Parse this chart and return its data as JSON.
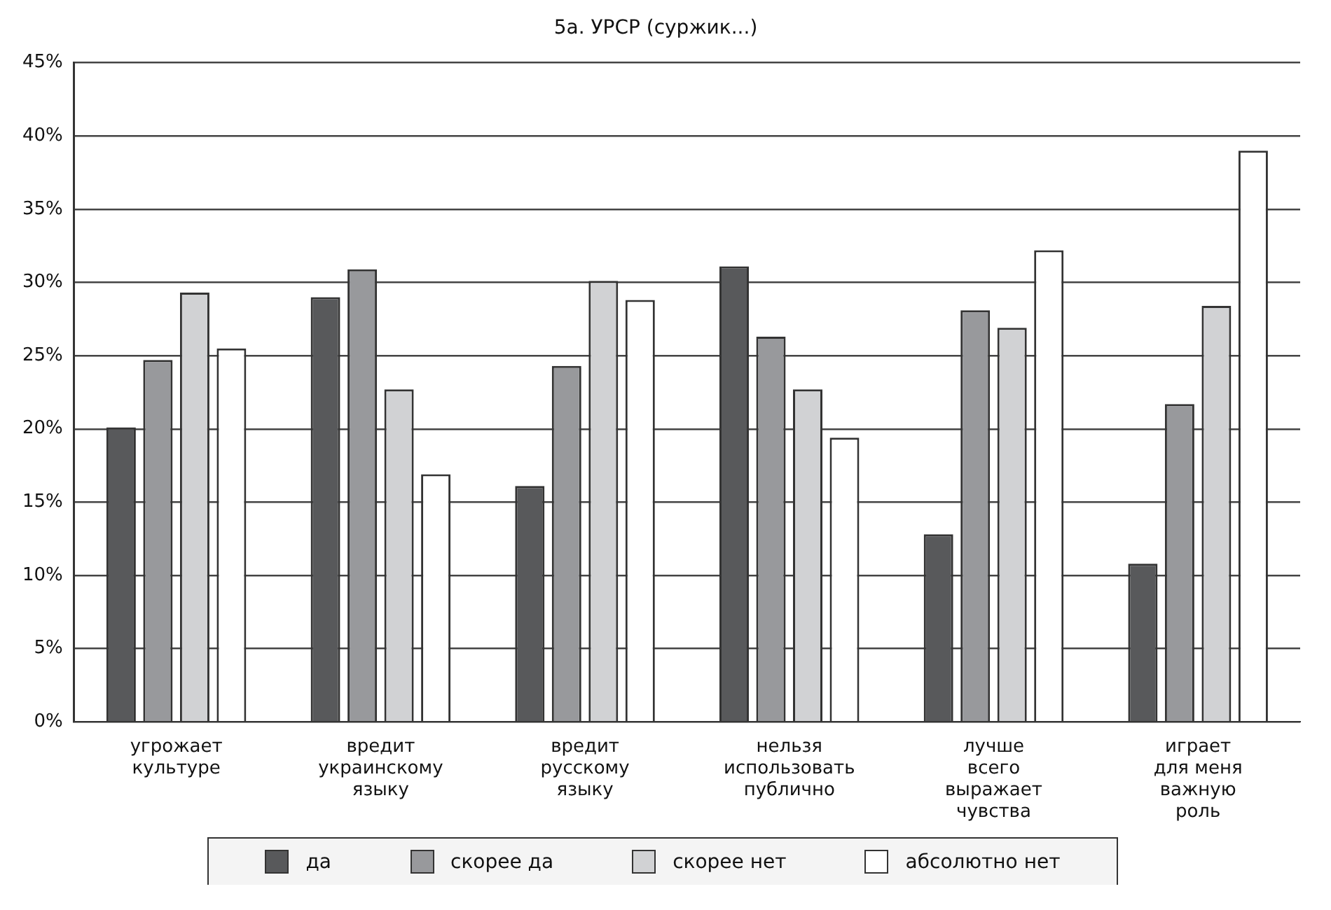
{
  "chart_data": {
    "type": "bar",
    "title": "5а. УРСР (суржик...)",
    "categories": [
      "угрожает\nкультуре",
      "вредит\nукраинскому\nязыку",
      "вредит\nрусскому\nязыку",
      "нельзя\nиспользовать\nпублично",
      "лучше\nвсего\nвыражает\nчувства",
      "играет\nдля меня\nважную\nроль"
    ],
    "series": [
      {
        "name": "да",
        "color": "#58595b",
        "values": [
          20.1,
          29.0,
          16.1,
          31.1,
          12.8,
          10.8
        ]
      },
      {
        "name": "скорее да",
        "color": "#98999c",
        "values": [
          24.7,
          30.9,
          24.3,
          26.3,
          28.1,
          21.7
        ]
      },
      {
        "name": "скорее нет",
        "color": "#d1d2d4",
        "values": [
          29.3,
          22.7,
          30.1,
          22.7,
          26.9,
          28.4
        ]
      },
      {
        "name": "абсолютно нет",
        "color": "#ffffff",
        "values": [
          25.5,
          16.9,
          28.8,
          19.4,
          32.2,
          39.0
        ]
      }
    ],
    "ylim": [
      0,
      45
    ],
    "yticks": [
      {
        "value": 0,
        "label": "0%"
      },
      {
        "value": 5,
        "label": "5%"
      },
      {
        "value": 10,
        "label": "10%"
      },
      {
        "value": 15,
        "label": "15%"
      },
      {
        "value": 20,
        "label": "20%"
      },
      {
        "value": 25,
        "label": "25%"
      },
      {
        "value": 30,
        "label": "30%"
      },
      {
        "value": 35,
        "label": "35%"
      },
      {
        "value": 40,
        "label": "40%"
      },
      {
        "value": 45,
        "label": "45%"
      }
    ],
    "grid": "y",
    "legend": "bottom"
  }
}
